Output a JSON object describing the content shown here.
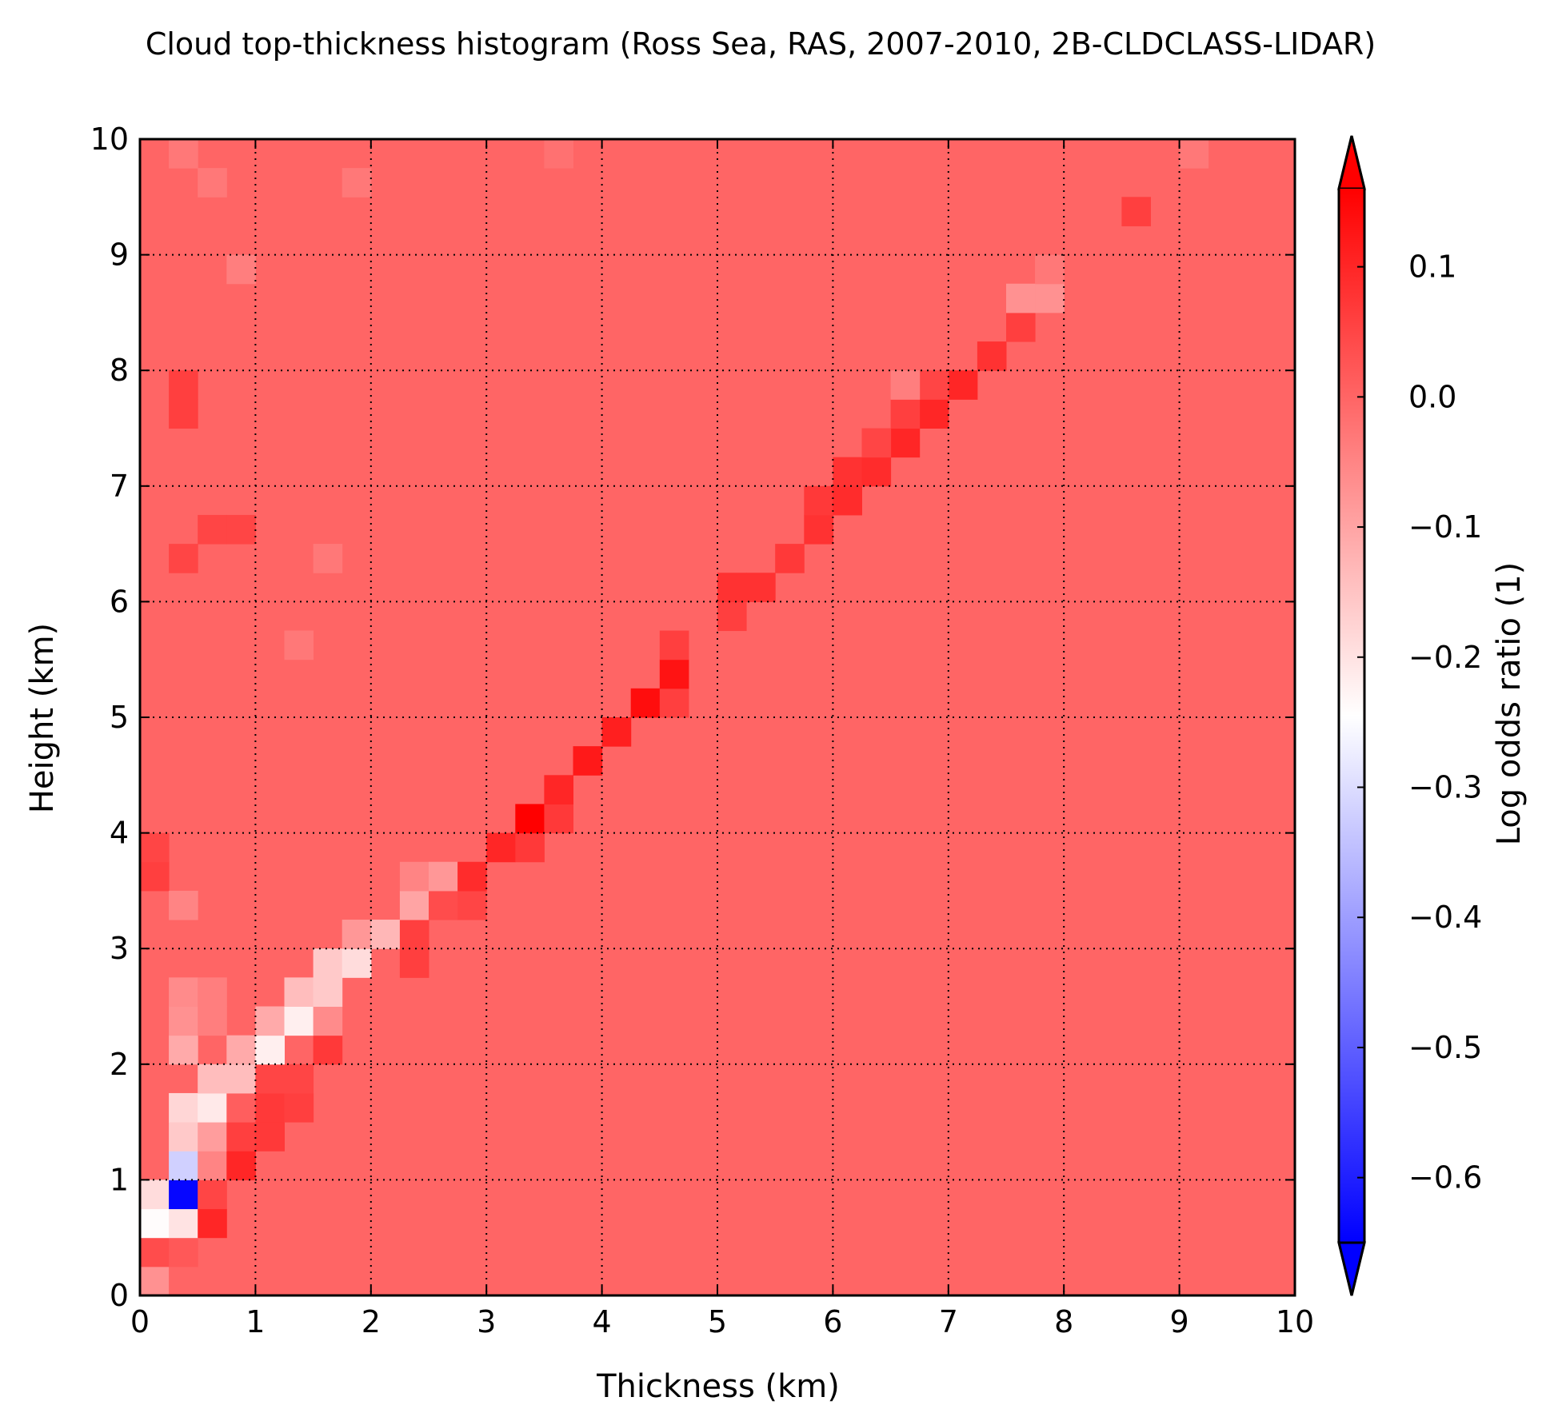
{
  "chart_data": {
    "type": "heatmap",
    "title": "Cloud top-thickness histogram (Ross Sea, RAS, 2007-2010, 2B-CLDCLASS-LIDAR)",
    "xlabel": "Thickness (km)",
    "ylabel": "Height (km)",
    "xlim": [
      0,
      10
    ],
    "ylim": [
      0,
      10
    ],
    "x_ticks": [
      "0",
      "1",
      "2",
      "3",
      "4",
      "5",
      "6",
      "7",
      "8",
      "9",
      "10"
    ],
    "y_ticks": [
      "0",
      "1",
      "2",
      "3",
      "4",
      "5",
      "6",
      "7",
      "8",
      "9",
      "10"
    ],
    "grid": true,
    "grid_style": "dotted",
    "bin_size_km": 0.25,
    "colormap": "bwr",
    "colorbar": {
      "label": "Log odds ratio (1)",
      "vmin": -0.65,
      "vmax": 0.16,
      "ticks": [
        "0.1",
        "0.0",
        "−0.1",
        "−0.2",
        "−0.3",
        "−0.4",
        "−0.5",
        "−0.6"
      ],
      "tick_values": [
        0.1,
        0.0,
        -0.1,
        -0.2,
        -0.3,
        -0.4,
        -0.5,
        -0.6
      ],
      "extend": "both"
    },
    "background_value": 0.0,
    "cells": [
      {
        "x": 0.0,
        "y": 0.0,
        "v": -0.07
      },
      {
        "x": 0.25,
        "y": 0.0,
        "v": 0.0
      },
      {
        "x": 0.0,
        "y": 0.25,
        "v": 0.04
      },
      {
        "x": 0.25,
        "y": 0.25,
        "v": 0.02
      },
      {
        "x": 0.0,
        "y": 0.5,
        "v": -0.24
      },
      {
        "x": 0.25,
        "y": 0.5,
        "v": -0.2
      },
      {
        "x": 0.5,
        "y": 0.5,
        "v": 0.1
      },
      {
        "x": 0.0,
        "y": 0.75,
        "v": -0.19
      },
      {
        "x": 0.25,
        "y": 0.75,
        "v": -0.64
      },
      {
        "x": 0.5,
        "y": 0.75,
        "v": 0.05
      },
      {
        "x": 0.25,
        "y": 1.0,
        "v": -0.32
      },
      {
        "x": 0.5,
        "y": 1.0,
        "v": -0.05
      },
      {
        "x": 0.75,
        "y": 1.0,
        "v": 0.1
      },
      {
        "x": 0.25,
        "y": 1.25,
        "v": -0.16
      },
      {
        "x": 0.5,
        "y": 1.25,
        "v": -0.09
      },
      {
        "x": 0.75,
        "y": 1.25,
        "v": 0.06
      },
      {
        "x": 1.0,
        "y": 1.25,
        "v": 0.07
      },
      {
        "x": 0.25,
        "y": 1.5,
        "v": -0.18
      },
      {
        "x": 0.5,
        "y": 1.5,
        "v": -0.21
      },
      {
        "x": 0.75,
        "y": 1.5,
        "v": 0.01
      },
      {
        "x": 1.0,
        "y": 1.5,
        "v": 0.07
      },
      {
        "x": 1.25,
        "y": 1.5,
        "v": 0.06
      },
      {
        "x": 0.5,
        "y": 1.75,
        "v": -0.14
      },
      {
        "x": 0.75,
        "y": 1.75,
        "v": -0.14
      },
      {
        "x": 1.0,
        "y": 1.75,
        "v": 0.05
      },
      {
        "x": 1.25,
        "y": 1.75,
        "v": 0.05
      },
      {
        "x": 0.25,
        "y": 2.0,
        "v": -0.11
      },
      {
        "x": 0.75,
        "y": 2.0,
        "v": -0.11
      },
      {
        "x": 1.0,
        "y": 2.0,
        "v": -0.22
      },
      {
        "x": 1.5,
        "y": 2.0,
        "v": 0.07
      },
      {
        "x": 0.25,
        "y": 2.25,
        "v": -0.07
      },
      {
        "x": 0.5,
        "y": 2.25,
        "v": -0.04
      },
      {
        "x": 1.0,
        "y": 2.25,
        "v": -0.11
      },
      {
        "x": 1.25,
        "y": 2.25,
        "v": -0.22
      },
      {
        "x": 1.5,
        "y": 2.25,
        "v": -0.06
      },
      {
        "x": 0.25,
        "y": 2.5,
        "v": -0.06
      },
      {
        "x": 0.5,
        "y": 2.5,
        "v": -0.04
      },
      {
        "x": 1.25,
        "y": 2.5,
        "v": -0.14
      },
      {
        "x": 1.5,
        "y": 2.5,
        "v": -0.16
      },
      {
        "x": 1.5,
        "y": 2.75,
        "v": -0.16
      },
      {
        "x": 1.75,
        "y": 2.75,
        "v": -0.19
      },
      {
        "x": 2.25,
        "y": 2.75,
        "v": 0.06
      },
      {
        "x": 1.75,
        "y": 3.0,
        "v": -0.08
      },
      {
        "x": 2.0,
        "y": 3.0,
        "v": -0.13
      },
      {
        "x": 2.25,
        "y": 3.0,
        "v": 0.06
      },
      {
        "x": 2.25,
        "y": 3.25,
        "v": -0.1
      },
      {
        "x": 2.5,
        "y": 3.25,
        "v": 0.04
      },
      {
        "x": 2.75,
        "y": 3.25,
        "v": 0.05
      },
      {
        "x": 2.25,
        "y": 3.5,
        "v": -0.05
      },
      {
        "x": 2.5,
        "y": 3.5,
        "v": -0.08
      },
      {
        "x": 2.75,
        "y": 3.5,
        "v": 0.09
      },
      {
        "x": 3.0,
        "y": 3.75,
        "v": 0.1
      },
      {
        "x": 3.25,
        "y": 3.75,
        "v": 0.07
      },
      {
        "x": 3.25,
        "y": 4.0,
        "v": 0.16
      },
      {
        "x": 3.5,
        "y": 4.0,
        "v": 0.07
      },
      {
        "x": 3.5,
        "y": 4.25,
        "v": 0.1
      },
      {
        "x": 3.75,
        "y": 4.5,
        "v": 0.12
      },
      {
        "x": 4.0,
        "y": 4.75,
        "v": 0.11
      },
      {
        "x": 4.25,
        "y": 5.0,
        "v": 0.14
      },
      {
        "x": 4.5,
        "y": 5.0,
        "v": 0.06
      },
      {
        "x": 4.5,
        "y": 5.25,
        "v": 0.13
      },
      {
        "x": 4.5,
        "y": 5.5,
        "v": 0.06
      },
      {
        "x": 5.0,
        "y": 5.75,
        "v": 0.06
      },
      {
        "x": 5.0,
        "y": 6.0,
        "v": 0.08
      },
      {
        "x": 5.25,
        "y": 6.0,
        "v": 0.08
      },
      {
        "x": 5.5,
        "y": 6.25,
        "v": 0.07
      },
      {
        "x": 5.75,
        "y": 6.5,
        "v": 0.08
      },
      {
        "x": 5.75,
        "y": 6.75,
        "v": 0.07
      },
      {
        "x": 6.0,
        "y": 6.75,
        "v": 0.09
      },
      {
        "x": 6.0,
        "y": 7.0,
        "v": 0.08
      },
      {
        "x": 6.25,
        "y": 7.0,
        "v": 0.09
      },
      {
        "x": 6.5,
        "y": 7.25,
        "v": 0.1
      },
      {
        "x": 6.25,
        "y": 7.25,
        "v": 0.05
      },
      {
        "x": 6.75,
        "y": 7.5,
        "v": 0.1
      },
      {
        "x": 6.5,
        "y": 7.5,
        "v": 0.06
      },
      {
        "x": 7.0,
        "y": 7.75,
        "v": 0.1
      },
      {
        "x": 6.75,
        "y": 7.75,
        "v": 0.05
      },
      {
        "x": 7.25,
        "y": 8.0,
        "v": 0.08
      },
      {
        "x": 7.5,
        "y": 8.25,
        "v": 0.06
      },
      {
        "x": 7.5,
        "y": 8.5,
        "v": -0.07
      },
      {
        "x": 7.75,
        "y": 8.5,
        "v": -0.07
      },
      {
        "x": 7.75,
        "y": 8.75,
        "v": -0.03
      },
      {
        "x": 8.5,
        "y": 9.25,
        "v": 0.06
      },
      {
        "x": 0.0,
        "y": 3.5,
        "v": 0.06
      },
      {
        "x": 0.0,
        "y": 3.75,
        "v": 0.05
      },
      {
        "x": 0.25,
        "y": 3.25,
        "v": -0.05
      },
      {
        "x": 0.25,
        "y": 7.75,
        "v": 0.06
      },
      {
        "x": 0.25,
        "y": 7.5,
        "v": 0.06
      },
      {
        "x": 0.25,
        "y": 6.25,
        "v": 0.05
      },
      {
        "x": 0.5,
        "y": 6.5,
        "v": 0.05
      },
      {
        "x": 0.75,
        "y": 6.5,
        "v": 0.05
      },
      {
        "x": 0.25,
        "y": 9.75,
        "v": -0.03
      },
      {
        "x": 0.5,
        "y": 9.5,
        "v": -0.03
      },
      {
        "x": 0.75,
        "y": 8.75,
        "v": -0.04
      },
      {
        "x": 1.25,
        "y": 5.5,
        "v": -0.03
      },
      {
        "x": 1.5,
        "y": 6.25,
        "v": -0.03
      },
      {
        "x": 1.75,
        "y": 9.5,
        "v": -0.03
      },
      {
        "x": 3.5,
        "y": 9.75,
        "v": -0.02
      },
      {
        "x": 9.0,
        "y": 9.75,
        "v": -0.03
      },
      {
        "x": 6.5,
        "y": 7.75,
        "v": -0.04
      }
    ]
  }
}
